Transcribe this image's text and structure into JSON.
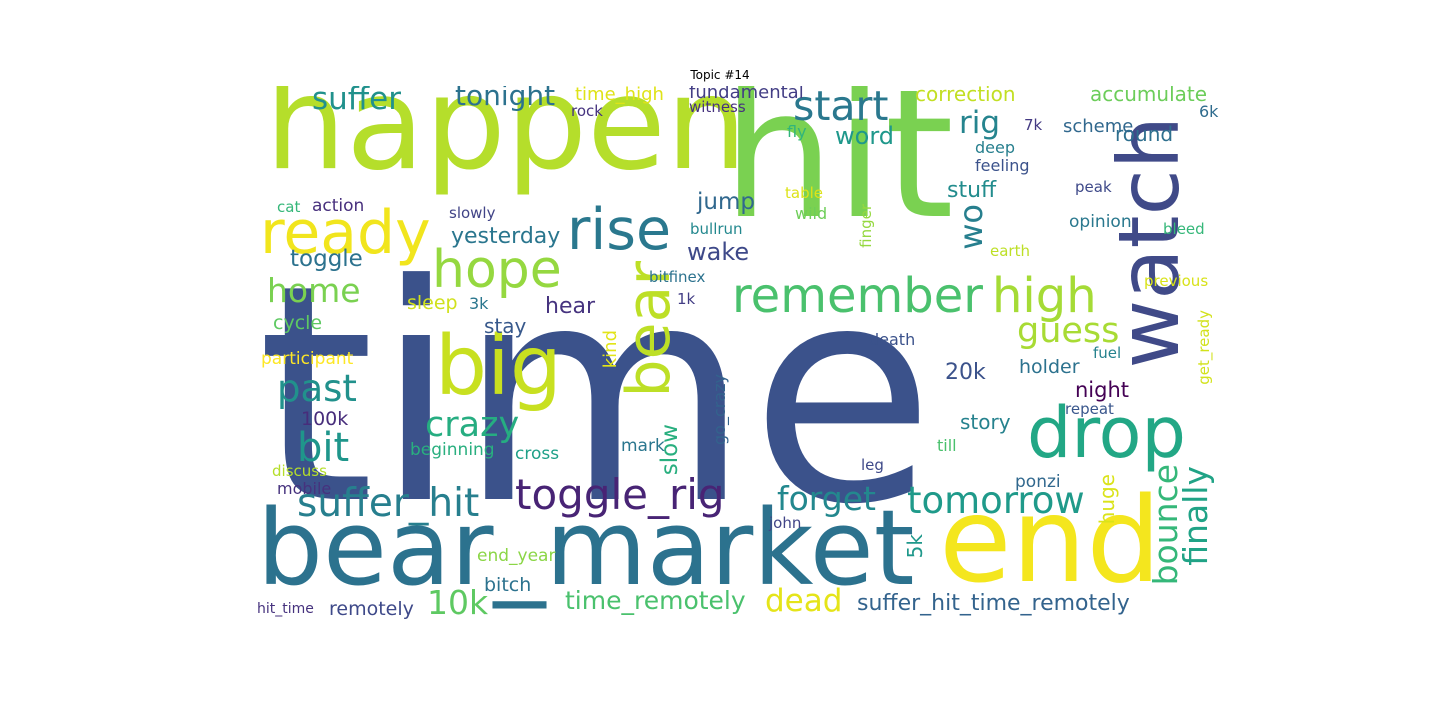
{
  "title": "Topic #14",
  "words": [
    {
      "text": "time",
      "color": "#3b528b"
    },
    {
      "text": "hit",
      "color": "#7ad151"
    },
    {
      "text": "happen",
      "color": "#b5de2b"
    },
    {
      "text": "bear_market",
      "color": "#2c728e"
    },
    {
      "text": "end",
      "color": "#f4e61e"
    },
    {
      "text": "watch",
      "color": "#404a88"
    },
    {
      "text": "drop",
      "color": "#22a785"
    },
    {
      "text": "big",
      "color": "#c8e020"
    },
    {
      "text": "bear",
      "color": "#bddf26"
    },
    {
      "text": "ready",
      "color": "#f1e51d"
    },
    {
      "text": "rise",
      "color": "#2a788e"
    },
    {
      "text": "hope",
      "color": "#95d840"
    },
    {
      "text": "remember",
      "color": "#4ac16d"
    },
    {
      "text": "high",
      "color": "#a5db36"
    },
    {
      "text": "toggle_rig",
      "color": "#482475"
    },
    {
      "text": "start",
      "color": "#2a788e"
    },
    {
      "text": "suffer_hit",
      "color": "#277f8e"
    },
    {
      "text": "tomorrow",
      "color": "#1f9a8a"
    },
    {
      "text": "bounce",
      "color": "#35b779"
    },
    {
      "text": "finally",
      "color": "#20a386"
    },
    {
      "text": "past",
      "color": "#21918c"
    },
    {
      "text": "crazy",
      "color": "#26ad81"
    },
    {
      "text": "bit",
      "color": "#1f968b"
    },
    {
      "text": "forget",
      "color": "#23888e"
    },
    {
      "text": "home",
      "color": "#7ad151"
    },
    {
      "text": "suffer",
      "color": "#21918c"
    },
    {
      "text": "tonight",
      "color": "#2c728e"
    },
    {
      "text": "guess",
      "color": "#a8db34"
    },
    {
      "text": "rig",
      "color": "#25848e"
    },
    {
      "text": "wo",
      "color": "#277f8e"
    },
    {
      "text": "10k",
      "color": "#5ec962"
    },
    {
      "text": "dead",
      "color": "#e5e419"
    },
    {
      "text": "wake",
      "color": "#3e4989"
    },
    {
      "text": "word",
      "color": "#1f988b"
    },
    {
      "text": "time_remotely",
      "color": "#4ac16d"
    },
    {
      "text": "suffer_hit_time_remotely",
      "color": "#33638d"
    },
    {
      "text": "toggle",
      "color": "#2c728e"
    },
    {
      "text": "jump",
      "color": "#31688e"
    },
    {
      "text": "yesterday",
      "color": "#2a768e"
    },
    {
      "text": "stuff",
      "color": "#228c8d"
    },
    {
      "text": "slow",
      "color": "#29af7f"
    },
    {
      "text": "accumulate",
      "color": "#6ccd5a"
    },
    {
      "text": "correction",
      "color": "#c2df23"
    },
    {
      "text": "fundamental",
      "color": "#433e85"
    },
    {
      "text": "time_high",
      "color": "#dfe318"
    },
    {
      "text": "20k",
      "color": "#3b528b"
    },
    {
      "text": "holder",
      "color": "#2c728e"
    },
    {
      "text": "night",
      "color": "#440154"
    },
    {
      "text": "hear",
      "color": "#46337f"
    },
    {
      "text": "stay",
      "color": "#38598c"
    },
    {
      "text": "story",
      "color": "#26828e"
    },
    {
      "text": "cycle",
      "color": "#5ec962"
    },
    {
      "text": "sleep",
      "color": "#d0e11c"
    },
    {
      "text": "round",
      "color": "#2e6f8e"
    },
    {
      "text": "scheme",
      "color": "#31688e"
    },
    {
      "text": "huge",
      "color": "#dae319"
    },
    {
      "text": "5k",
      "color": "#1f988b"
    },
    {
      "text": "remotely",
      "color": "#3e4989"
    },
    {
      "text": "100k",
      "color": "#472d7b"
    },
    {
      "text": "bitch",
      "color": "#2c728e"
    },
    {
      "text": "end_year",
      "color": "#8bd646"
    },
    {
      "text": "action",
      "color": "#472f7d"
    },
    {
      "text": "kind",
      "color": "#e2e418"
    },
    {
      "text": "go_crazy",
      "color": "#33638d"
    },
    {
      "text": "participant",
      "color": "#fde725"
    },
    {
      "text": "mark",
      "color": "#2a768e"
    },
    {
      "text": "ponzi",
      "color": "#31688e"
    },
    {
      "text": "beginning",
      "color": "#29af7f"
    },
    {
      "text": "cross",
      "color": "#1fa088"
    },
    {
      "text": "opinion",
      "color": "#2a788e"
    },
    {
      "text": "mobile",
      "color": "#46327e"
    },
    {
      "text": "feeling",
      "color": "#3b528b"
    },
    {
      "text": "deep",
      "color": "#277f8e"
    },
    {
      "text": "wild",
      "color": "#6ece58"
    },
    {
      "text": "fly",
      "color": "#31b57b"
    },
    {
      "text": "slowly",
      "color": "#414487"
    },
    {
      "text": "rock",
      "color": "#46337f"
    },
    {
      "text": "witness",
      "color": "#46327e"
    },
    {
      "text": "till",
      "color": "#4ac16d"
    },
    {
      "text": "repeat",
      "color": "#39568c"
    },
    {
      "text": "fuel",
      "color": "#26828e"
    },
    {
      "text": "bleed",
      "color": "#35b779"
    },
    {
      "text": "peak",
      "color": "#3e4989"
    },
    {
      "text": "7k",
      "color": "#443a83"
    },
    {
      "text": "6k",
      "color": "#2f6c8e"
    },
    {
      "text": "table",
      "color": "#dde318"
    },
    {
      "text": "earth",
      "color": "#bddf26"
    },
    {
      "text": "previous",
      "color": "#d8e219"
    },
    {
      "text": "get_ready",
      "color": "#d2e21b"
    },
    {
      "text": "bitfinex",
      "color": "#2c728e"
    },
    {
      "text": "1k",
      "color": "#433e85"
    },
    {
      "text": "death",
      "color": "#3b528b"
    },
    {
      "text": "3k",
      "color": "#2a768e"
    },
    {
      "text": "finger",
      "color": "#95d840"
    },
    {
      "text": "bullrun",
      "color": "#23888e"
    },
    {
      "text": "cat",
      "color": "#35b779"
    },
    {
      "text": "discuss",
      "color": "#b5de2b"
    },
    {
      "text": "leg",
      "color": "#3e4989"
    },
    {
      "text": "john",
      "color": "#414487"
    },
    {
      "text": "hit_time",
      "color": "#46327e"
    }
  ]
}
